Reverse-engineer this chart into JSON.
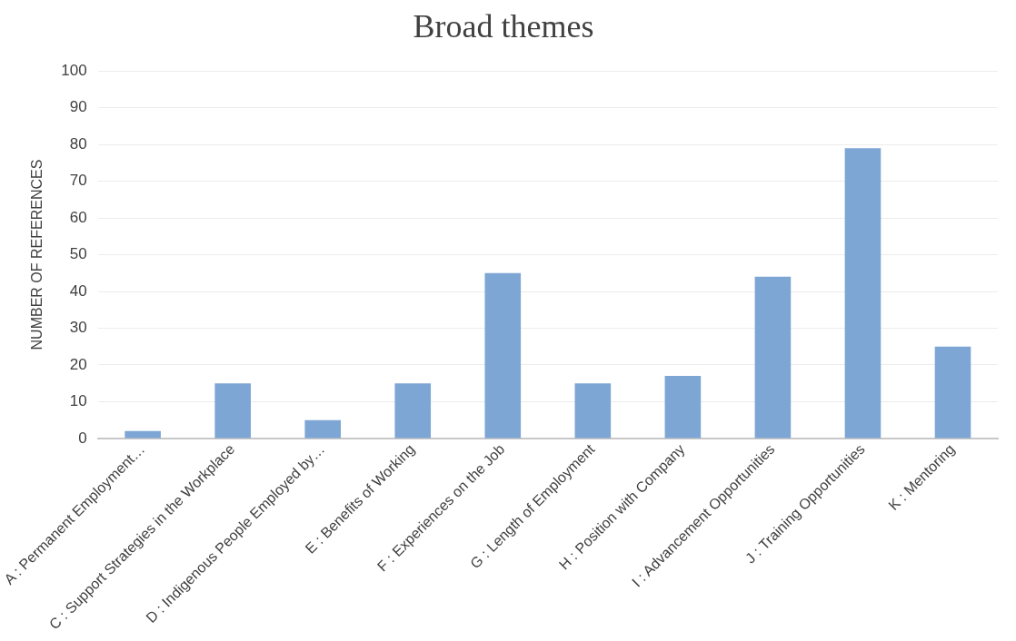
{
  "chart_data": {
    "type": "bar",
    "title": "Broad themes",
    "ylabel": "NUMBER OF REFERENCES",
    "categories": [
      "A : Permanent Employment…",
      "C : Support Strategies in the Workplace",
      "D : Indigenous People Employed by…",
      "E : Benefits of Working",
      "F : Experiences on the Job",
      "G : Length of Employment",
      "H : Position with Company",
      "I : Advancement Opportunities",
      "J : Training Opportunities",
      "K : Mentoring"
    ],
    "values": [
      2,
      15,
      5,
      15,
      45,
      15,
      17,
      44,
      79,
      25
    ],
    "color": "#7ea6d4",
    "ylim": [
      0,
      100
    ],
    "yticks": [
      0,
      10,
      20,
      30,
      40,
      50,
      60,
      70,
      80,
      90,
      100
    ],
    "grid": "y",
    "legend": false
  }
}
